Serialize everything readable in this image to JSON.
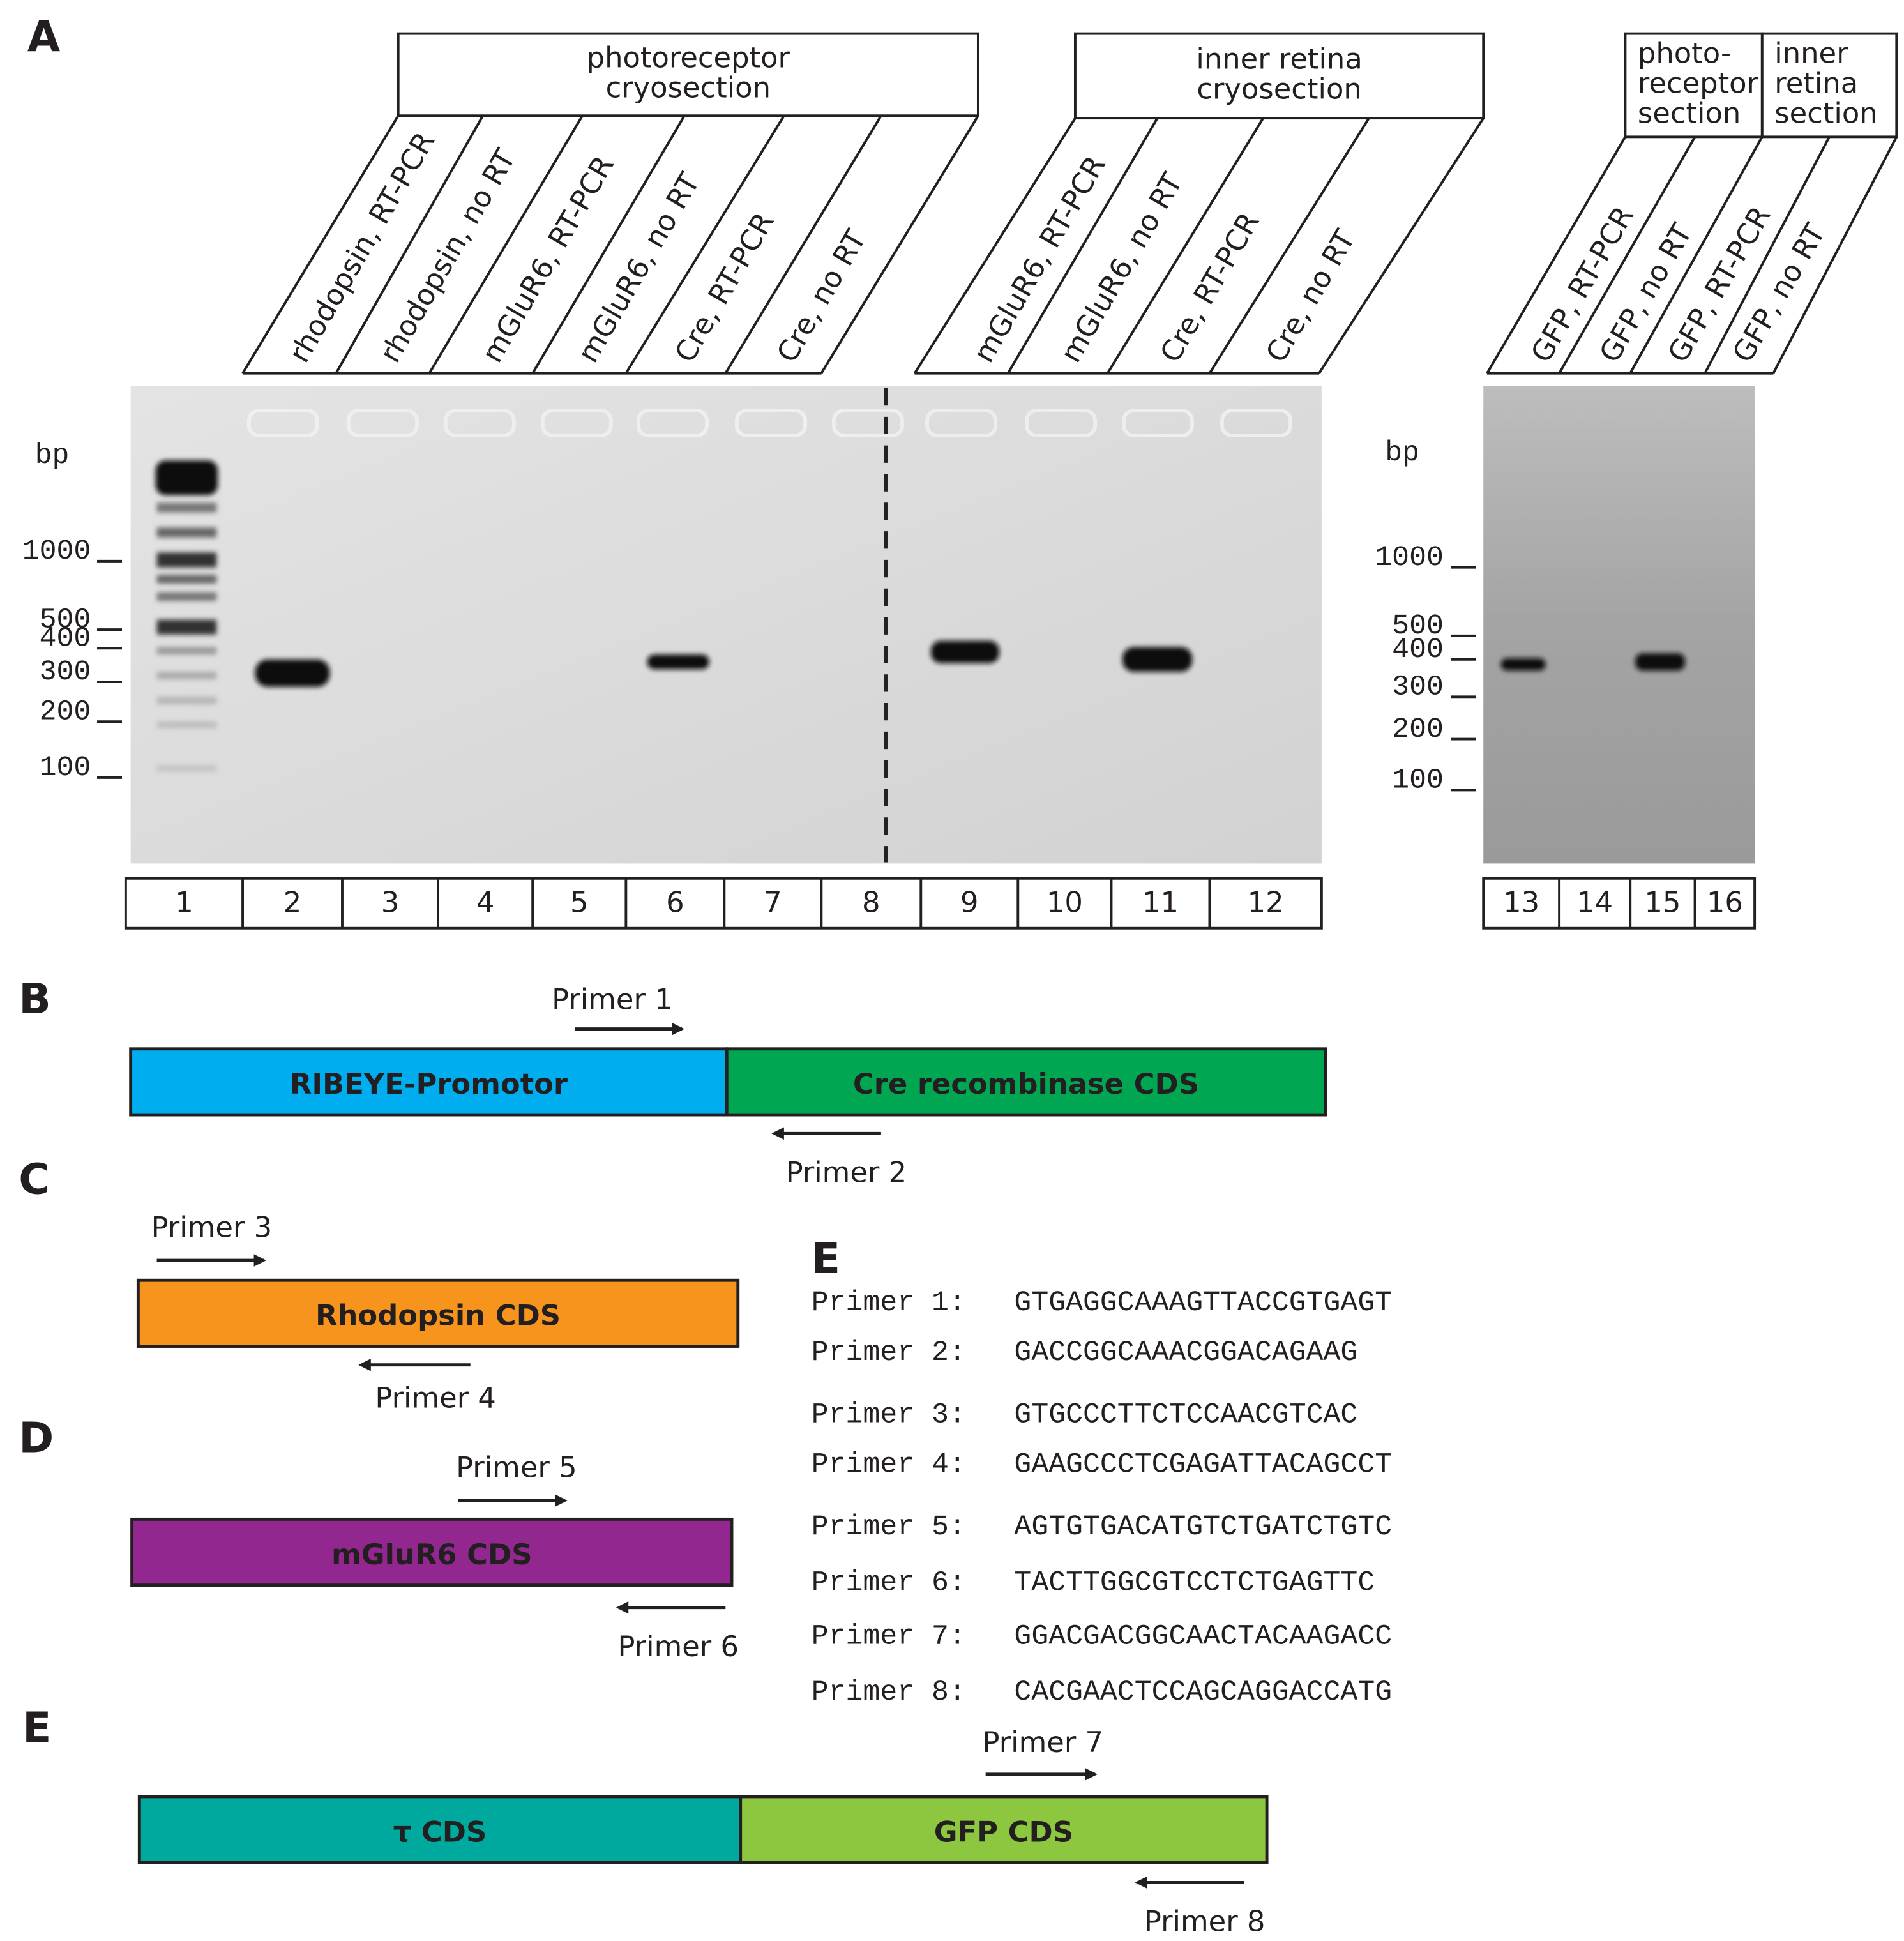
{
  "panel_a": {
    "label": "A",
    "groups": [
      {
        "lines": [
          "photoreceptor",
          "cryosection"
        ]
      },
      {
        "lines": [
          "inner retina",
          "cryosection"
        ]
      },
      {
        "lines": [
          "photo-",
          "receptor",
          "section"
        ]
      },
      {
        "lines": [
          "inner",
          "retina",
          "section"
        ]
      }
    ],
    "lane_labels": [
      "rhodopsin, RT-PCR",
      "rhodopsin, no RT",
      "mGluR6, RT-PCR",
      "mGluR6, no RT",
      "Cre, RT-PCR",
      "Cre, no RT",
      "mGluR6, RT-PCR",
      "mGluR6, no RT",
      "Cre, RT-PCR",
      "Cre, no RT",
      "GFP, RT-PCR",
      "GFP, no RT",
      "GFP, RT-PCR",
      "GFP, no RT"
    ],
    "size_markers": {
      "unit": "bp",
      "left": [
        "1000",
        "500",
        "400",
        "300",
        "200",
        "100"
      ],
      "right": [
        "1000",
        "500",
        "400",
        "300",
        "200",
        "100"
      ]
    },
    "lane_numbers": [
      "1",
      "2",
      "3",
      "4",
      "5",
      "6",
      "7",
      "8",
      "9",
      "10",
      "11",
      "12",
      "13",
      "14",
      "15",
      "16"
    ]
  },
  "panel_b": {
    "label": "B",
    "segments": [
      "RIBEYE-Promotor",
      "Cre recombinase CDS"
    ],
    "primers": [
      "Primer 1",
      "Primer 2"
    ]
  },
  "panel_c": {
    "label": "C",
    "segments": [
      "Rhodopsin CDS"
    ],
    "primers": [
      "Primer 3",
      "Primer 4"
    ]
  },
  "panel_d": {
    "label": "D",
    "segments": [
      "mGluR6 CDS"
    ],
    "primers": [
      "Primer 5",
      "Primer 6"
    ]
  },
  "panel_e": {
    "label": "E",
    "segments": [
      "τ CDS",
      "GFP CDS"
    ],
    "primers": [
      "Primer 7",
      "Primer 8"
    ]
  },
  "primer_table": {
    "label": "E",
    "rows": [
      {
        "name": "Primer 1:",
        "sequence": "GTGAGGCAAAGTTACCGTGAGT"
      },
      {
        "name": "Primer 2:",
        "sequence": "GACCGGCAAACGGACAGAAG"
      },
      {
        "name": "Primer 3:",
        "sequence": "GTGCCCTTCTCCAACGTCAC"
      },
      {
        "name": "Primer 4:",
        "sequence": "GAAGCCCTCGAGATTACAGCCT"
      },
      {
        "name": "Primer 5:",
        "sequence": "AGTGTGACATGTCTGATCTGTC"
      },
      {
        "name": "Primer 6:",
        "sequence": "TACTTGGCGTCCTCTGAGTTC"
      },
      {
        "name": "Primer 7:",
        "sequence": "GGACGACGGCAACTACAAGACC"
      },
      {
        "name": "Primer 8:",
        "sequence": "CACGAACTCCAGCAGGACCATG"
      }
    ]
  }
}
